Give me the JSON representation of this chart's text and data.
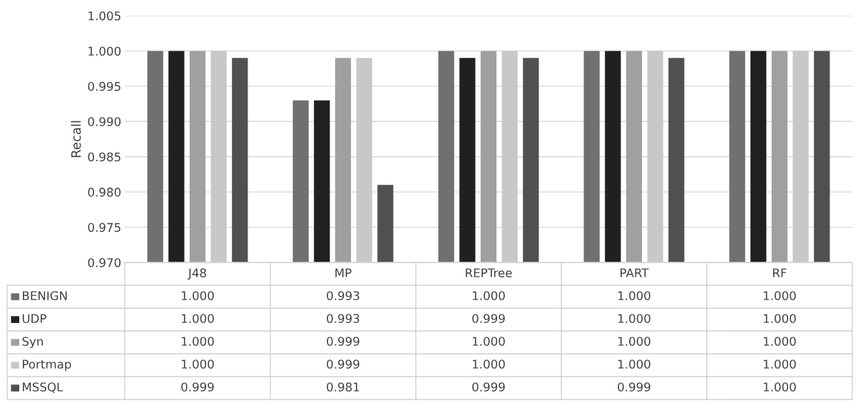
{
  "chart_data": {
    "type": "bar",
    "ylabel": "Recall",
    "categories": [
      "J48",
      "MP",
      "REPTree",
      "PART",
      "RF"
    ],
    "series": [
      {
        "name": "BENIGN",
        "color": "#707070",
        "values": [
          1.0,
          0.993,
          1.0,
          1.0,
          1.0
        ],
        "value_labels": [
          "1.000",
          "0.993",
          "1.000",
          "1.000",
          "1.000"
        ]
      },
      {
        "name": "UDP",
        "color": "#202020",
        "values": [
          1.0,
          0.993,
          0.999,
          1.0,
          1.0
        ],
        "value_labels": [
          "1.000",
          "0.993",
          "0.999",
          "1.000",
          "1.000"
        ]
      },
      {
        "name": "Syn",
        "color": "#a0a0a0",
        "values": [
          1.0,
          0.999,
          1.0,
          1.0,
          1.0
        ],
        "value_labels": [
          "1.000",
          "0.999",
          "1.000",
          "1.000",
          "1.000"
        ]
      },
      {
        "name": "Portmap",
        "color": "#c8c8c8",
        "values": [
          1.0,
          0.999,
          1.0,
          1.0,
          1.0
        ],
        "value_labels": [
          "1.000",
          "0.999",
          "1.000",
          "1.000",
          "1.000"
        ]
      },
      {
        "name": "MSSQL",
        "color": "#505050",
        "values": [
          0.999,
          0.981,
          0.999,
          0.999,
          1.0
        ],
        "value_labels": [
          "0.999",
          "0.981",
          "0.999",
          "0.999",
          "1.000"
        ]
      }
    ],
    "ylim": [
      0.97,
      1.005
    ],
    "yticks": [
      {
        "value": 0.97,
        "label": "0.970"
      },
      {
        "value": 0.975,
        "label": "0.975"
      },
      {
        "value": 0.98,
        "label": "0.980"
      },
      {
        "value": 0.985,
        "label": "0.985"
      },
      {
        "value": 0.99,
        "label": "0.990"
      },
      {
        "value": 0.995,
        "label": "0.995"
      },
      {
        "value": 1.0,
        "label": "1.000"
      },
      {
        "value": 1.005,
        "label": "1.005"
      }
    ],
    "grid": "y",
    "legend": "bottom"
  }
}
